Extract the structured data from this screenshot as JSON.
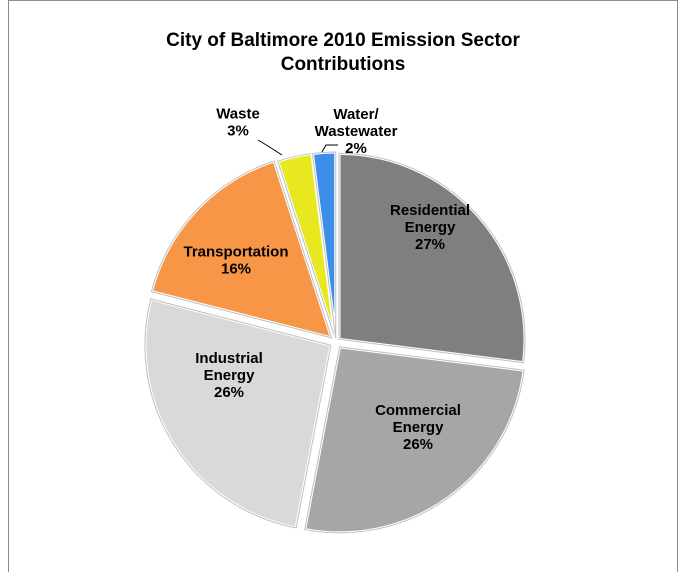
{
  "chart_data": {
    "type": "pie",
    "title": "City of Baltimore 2010 Emission Sector Contributions",
    "title_lines": [
      "City of Baltimore 2010 Emission Sector",
      "Contributions"
    ],
    "slices": [
      {
        "label_lines": [
          "Residential",
          "Energy"
        ],
        "pct_label": "27%",
        "value": 27,
        "color": "#7f7f7f"
      },
      {
        "label_lines": [
          "Commercial",
          "Energy"
        ],
        "pct_label": "26%",
        "value": 26,
        "color": "#a6a6a6"
      },
      {
        "label_lines": [
          "Industrial",
          "Energy"
        ],
        "pct_label": "26%",
        "value": 26,
        "color": "#d9d9d9"
      },
      {
        "label_lines": [
          "Transportation"
        ],
        "pct_label": "16%",
        "value": 16,
        "color": "#f79646"
      },
      {
        "label_lines": [
          "Waste"
        ],
        "pct_label": "3%",
        "value": 3,
        "color": "#e8e820"
      },
      {
        "label_lines": [
          "Water/",
          "Wastewater"
        ],
        "pct_label": "2%",
        "value": 2,
        "color": "#3d8ee8"
      }
    ],
    "start_angle_deg": 0,
    "direction": "clockwise",
    "legend": "none"
  }
}
